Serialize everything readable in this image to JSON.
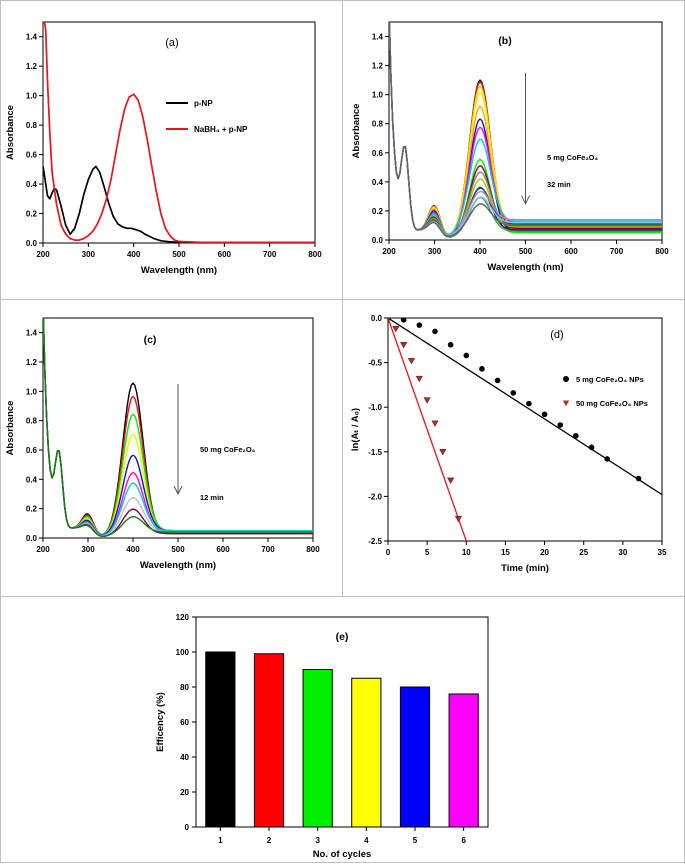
{
  "figure": {
    "panels": [
      "a",
      "b",
      "c",
      "d",
      "e"
    ]
  },
  "chart_data": [
    {
      "id": "a",
      "type": "line",
      "panel_label": "(a)",
      "xlabel": "Wavelength (nm)",
      "ylabel": "Absorbance",
      "xlim": [
        200,
        800
      ],
      "ylim": [
        0,
        1.5
      ],
      "xticks": [
        200,
        300,
        400,
        500,
        600,
        700,
        800
      ],
      "yticks": [
        0.0,
        0.2,
        0.4,
        0.6,
        0.8,
        1.0,
        1.2,
        1.4
      ],
      "legend": [
        "p-NP",
        "NaBH₄ + p-NP"
      ],
      "series": [
        {
          "name": "p-NP",
          "color": "#000000",
          "x": [
            200,
            205,
            210,
            215,
            220,
            225,
            230,
            240,
            250,
            260,
            270,
            280,
            290,
            300,
            310,
            317,
            325,
            335,
            345,
            355,
            365,
            375,
            385,
            395,
            405,
            415,
            425,
            435,
            445,
            460,
            480,
            500,
            550,
            600,
            700,
            800
          ],
          "y": [
            0.52,
            0.42,
            0.32,
            0.3,
            0.34,
            0.37,
            0.36,
            0.25,
            0.12,
            0.06,
            0.1,
            0.2,
            0.33,
            0.43,
            0.5,
            0.52,
            0.48,
            0.38,
            0.27,
            0.18,
            0.13,
            0.11,
            0.1,
            0.1,
            0.09,
            0.08,
            0.06,
            0.045,
            0.03,
            0.015,
            0.008,
            0.004,
            0.003,
            0.003,
            0.003,
            0.003
          ]
        },
        {
          "name": "NaBH₄ + p-NP",
          "color": "#e8141c",
          "x": [
            200,
            203,
            206,
            210,
            215,
            220,
            230,
            240,
            250,
            260,
            270,
            280,
            290,
            300,
            310,
            320,
            330,
            340,
            350,
            360,
            370,
            380,
            390,
            400,
            410,
            420,
            430,
            440,
            450,
            460,
            470,
            480,
            490,
            500,
            550,
            600,
            650,
            700,
            750,
            800
          ],
          "y": [
            1.5,
            1.5,
            1.45,
            1.1,
            0.75,
            0.48,
            0.26,
            0.12,
            0.06,
            0.03,
            0.02,
            0.02,
            0.03,
            0.05,
            0.08,
            0.13,
            0.2,
            0.3,
            0.43,
            0.6,
            0.77,
            0.91,
            0.99,
            1.01,
            0.97,
            0.86,
            0.7,
            0.52,
            0.35,
            0.2,
            0.1,
            0.05,
            0.02,
            0.01,
            0.005,
            0.005,
            0.005,
            0.005,
            0.005,
            0.005
          ]
        }
      ]
    },
    {
      "id": "b",
      "type": "line",
      "panel_label": "(b)",
      "xlabel": "Wavelength (nm)",
      "ylabel": "Absorbance",
      "xlim": [
        200,
        800
      ],
      "ylim": [
        0,
        1.5
      ],
      "xticks": [
        200,
        300,
        400,
        500,
        600,
        700,
        800
      ],
      "yticks": [
        0.0,
        0.2,
        0.4,
        0.6,
        0.8,
        1.0,
        1.2,
        1.4
      ],
      "annotation_label": "5 mg  CoFe₂O₄",
      "annotation_time": "32 min",
      "arrow": {
        "x": 500,
        "y_from": 1.15,
        "y_to": 0.25
      },
      "peak_values": [
        1.03,
        1.01,
        0.97,
        0.92,
        0.86,
        0.78,
        0.67,
        0.58,
        0.51,
        0.44,
        0.38,
        0.34,
        0.3,
        0.26,
        0.24,
        0.21,
        0.19,
        0.16
      ],
      "colors": [
        "#000000",
        "#e8141c",
        "#f4d000",
        "#f0f000",
        "#ffaa00",
        "#1010c8",
        "#ff00ff",
        "#00d0d0",
        "#00ee00",
        "#800040",
        "#808080",
        "#b0c000",
        "#1a1a80",
        "#006060",
        "#40a040",
        "#c080c0",
        "#80c0ff",
        "#606060"
      ],
      "baselines": [
        0.08,
        0.09,
        0.1,
        0.11,
        0.07,
        0.06,
        0.12,
        0.13,
        0.05,
        0.08,
        0.1,
        0.09,
        0.07,
        0.11,
        0.06,
        0.14,
        0.12,
        0.1
      ]
    },
    {
      "id": "c",
      "type": "line",
      "panel_label": "(c)",
      "xlabel": "Wavelength (nm)",
      "ylabel": "Absorbance",
      "xlim": [
        200,
        800
      ],
      "ylim": [
        0,
        1.5
      ],
      "xticks": [
        200,
        300,
        400,
        500,
        600,
        700,
        800
      ],
      "yticks": [
        0.0,
        0.2,
        0.4,
        0.6,
        0.8,
        1.0,
        1.2,
        1.4
      ],
      "annotation_label": "50 mg CoFe₂O₄",
      "annotation_time": "12 min",
      "arrow": {
        "x": 500,
        "y_from": 1.05,
        "y_to": 0.3
      },
      "peak_values": [
        1.03,
        0.93,
        0.8,
        0.67,
        0.52,
        0.41,
        0.33,
        0.24,
        0.17,
        0.11
      ],
      "colors": [
        "#000000",
        "#e8141c",
        "#00ee00",
        "#f0f000",
        "#1010c8",
        "#ff00ff",
        "#00d0d0",
        "#c0c0c0",
        "#800040",
        "#108010"
      ],
      "baselines": [
        0.03,
        0.04,
        0.05,
        0.04,
        0.05,
        0.04,
        0.05,
        0.04,
        0.03,
        0.04
      ]
    },
    {
      "id": "d",
      "type": "scatter",
      "panel_label": "(d)",
      "xlabel": "Time (min)",
      "ylabel": "ln(Aₜ / A₀)",
      "xlim": [
        0,
        35
      ],
      "ylim": [
        -2.5,
        0.0
      ],
      "xticks": [
        0,
        5,
        10,
        15,
        20,
        25,
        30,
        35
      ],
      "yticks": [
        0.0,
        -0.5,
        -1.0,
        -1.5,
        -2.0,
        -2.5
      ],
      "series": [
        {
          "name": "5 mg CoFe₂O₄ NPs",
          "color": "#000000",
          "marker": "circle",
          "x": [
            0,
            2,
            4,
            6,
            8,
            10,
            12,
            14,
            16,
            18,
            20,
            22,
            24,
            26,
            28,
            32
          ],
          "y": [
            0.0,
            -0.02,
            -0.08,
            -0.15,
            -0.3,
            -0.42,
            -0.57,
            -0.7,
            -0.84,
            -0.96,
            -1.08,
            -1.2,
            -1.32,
            -1.45,
            -1.58,
            -1.8
          ],
          "fit": {
            "x": [
              0,
              35
            ],
            "y": [
              0.0,
              -1.98
            ]
          }
        },
        {
          "name": "50 mg CoFe₂O₄ NPs",
          "color": "#a83030",
          "marker": "triangle-down",
          "x": [
            0,
            1,
            2,
            3,
            4,
            5,
            6,
            7,
            8,
            9
          ],
          "y": [
            0.0,
            -0.12,
            -0.3,
            -0.48,
            -0.68,
            -0.92,
            -1.18,
            -1.5,
            -1.82,
            -2.25
          ],
          "fit": {
            "x": [
              0,
              10
            ],
            "y": [
              0.0,
              -2.5
            ]
          }
        }
      ]
    },
    {
      "id": "e",
      "type": "bar",
      "panel_label": "(e)",
      "xlabel": "No. of cycles",
      "ylabel": "Efficency (%)",
      "categories": [
        "1",
        "2",
        "3",
        "4",
        "5",
        "6"
      ],
      "values": [
        100,
        99,
        90,
        85,
        80,
        76
      ],
      "colors": [
        "#000000",
        "#ff0000",
        "#00ee00",
        "#ffff00",
        "#0000ff",
        "#ff00ff"
      ],
      "ylim": [
        0,
        120
      ],
      "yticks": [
        0,
        20,
        40,
        60,
        80,
        100,
        120
      ]
    }
  ]
}
